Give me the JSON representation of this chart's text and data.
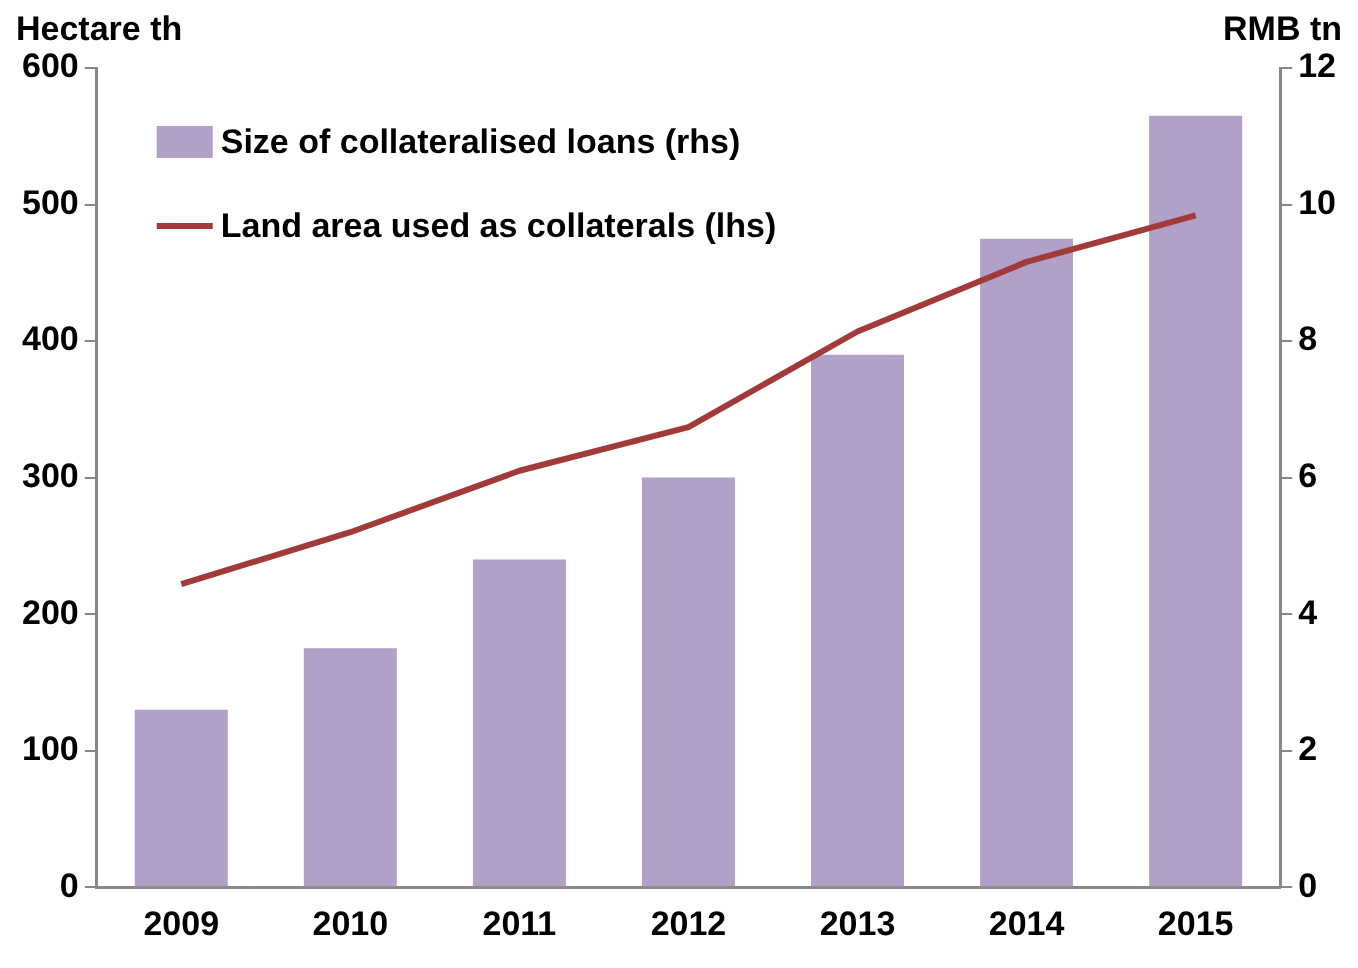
{
  "chart_data": {
    "type": "bar",
    "categories": [
      "2009",
      "2010",
      "2011",
      "2012",
      "2013",
      "2014",
      "2015"
    ],
    "ylabel": "Hectare th",
    "y2label": "RMB tn",
    "series": [
      {
        "name": "Size of collateralised loans (rhs)",
        "type": "bar",
        "axis": "y2",
        "color": "#b1a0c7",
        "values": [
          2.6,
          3.5,
          4.8,
          6.0,
          7.8,
          9.5,
          11.3
        ]
      },
      {
        "name": "Land area used as collaterals (lhs)",
        "type": "line",
        "color": "#a33a3a",
        "values": [
          222,
          260,
          305,
          337,
          407,
          458,
          492
        ]
      }
    ],
    "ylim": [
      0,
      600
    ],
    "yticks": [
      0,
      100,
      200,
      300,
      400,
      500,
      600
    ],
    "y2lim": [
      0,
      12
    ],
    "y2ticks": [
      0,
      2,
      4,
      6,
      8,
      10,
      12
    ],
    "grid": false,
    "legend": "top left",
    "marker": "none"
  }
}
